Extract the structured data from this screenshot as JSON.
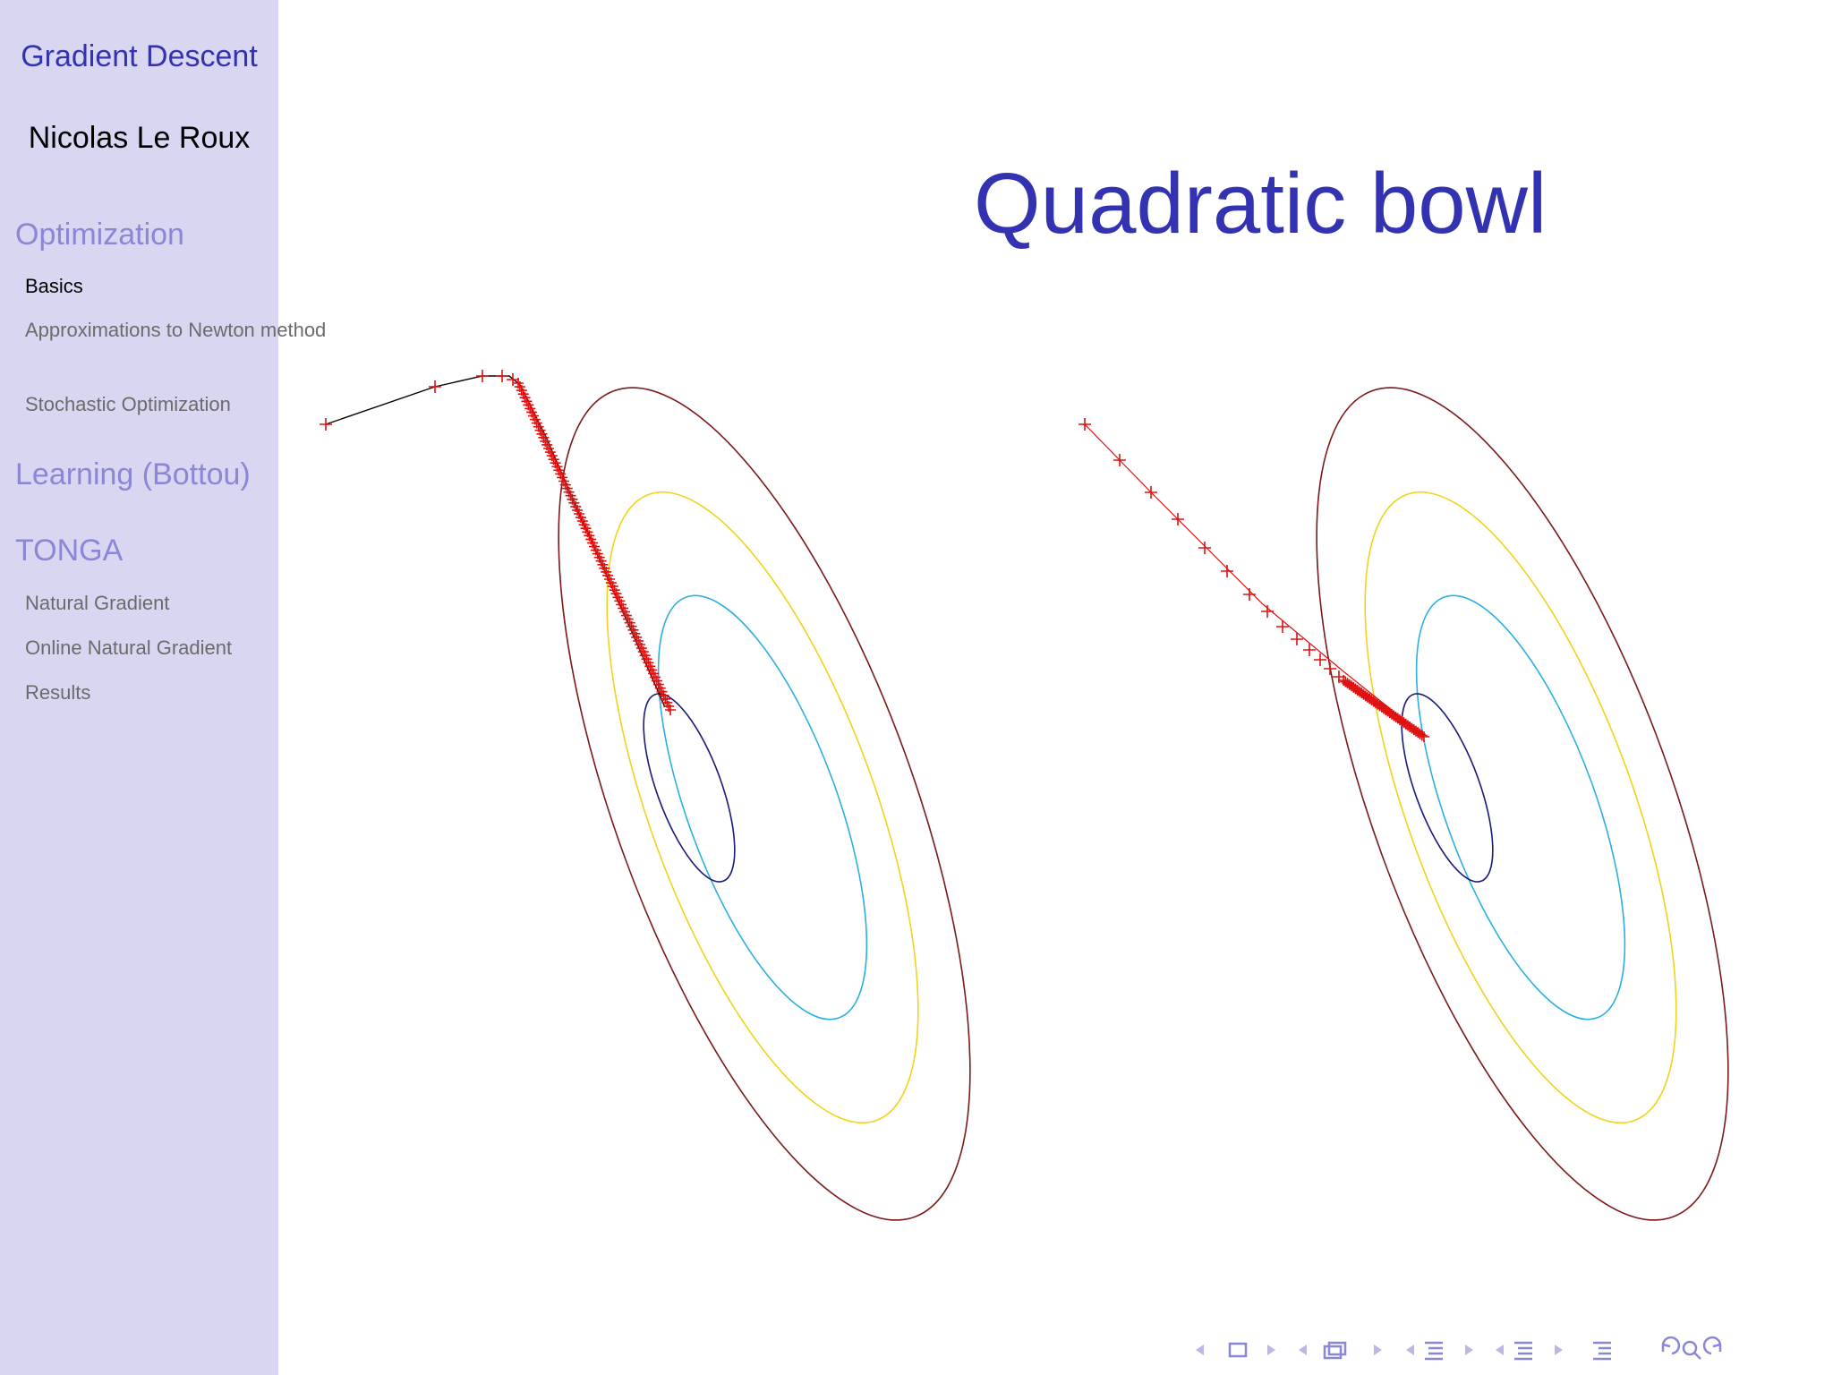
{
  "sidebar": {
    "deck_title": "Gradient Descent",
    "author": "Nicolas Le Roux",
    "sections": [
      {
        "title": "Optimization",
        "items": [
          "Basics",
          "Approximations to Newton method",
          "Stochastic Optimization"
        ],
        "active_item": 0
      },
      {
        "title": "Learning (Bottou)",
        "items": []
      },
      {
        "title": "TONGA",
        "items": [
          "Natural Gradient",
          "Online Natural Gradient",
          "Results"
        ]
      }
    ]
  },
  "slide": {
    "title": "Quadratic bowl"
  },
  "colors": {
    "sidebar_bg": "#d8d6f0",
    "title": "#3333b2",
    "section": "#8a88d6",
    "contour_outer": "#7a1a1a",
    "contour_yellow": "#f2d21a",
    "contour_cyan": "#2ab0e0",
    "contour_inner": "#1a1a7a",
    "path": "#e01010"
  },
  "navigation_icons": [
    "prev-frame-icon",
    "frame-icon",
    "next-frame-icon",
    "prev-slide-icon",
    "slide-icon",
    "next-slide-icon",
    "prev-subsection-icon",
    "subsection-icon",
    "next-subsection-icon",
    "prev-section-icon",
    "section-icon",
    "next-section-icon",
    "outline-icon",
    "back-icon",
    "search-icon",
    "forward-icon"
  ]
}
